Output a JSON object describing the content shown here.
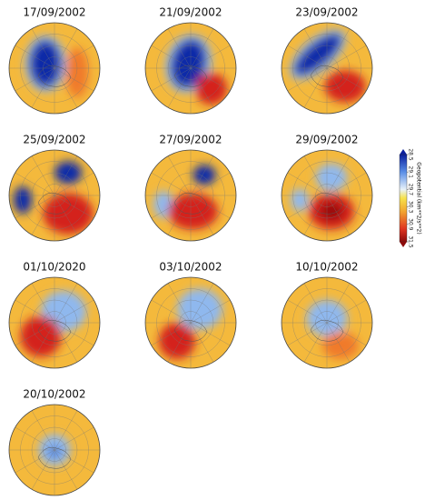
{
  "panels": [
    {
      "title": "17/09/2002"
    },
    {
      "title": "21/09/2002"
    },
    {
      "title": "23/09/2002"
    },
    {
      "title": "25/09/2002"
    },
    {
      "title": "27/09/2002"
    },
    {
      "title": "29/09/2002"
    },
    {
      "title": "01/10/2020"
    },
    {
      "title": "03/10/2002"
    },
    {
      "title": "10/10/2002"
    },
    {
      "title": "20/10/2002"
    }
  ],
  "colorbar": {
    "label": "Geopotential (km**2/s**2)",
    "ticks": [
      28.5,
      29.1,
      29.7,
      30.3,
      30.9,
      31.5
    ]
  }
}
